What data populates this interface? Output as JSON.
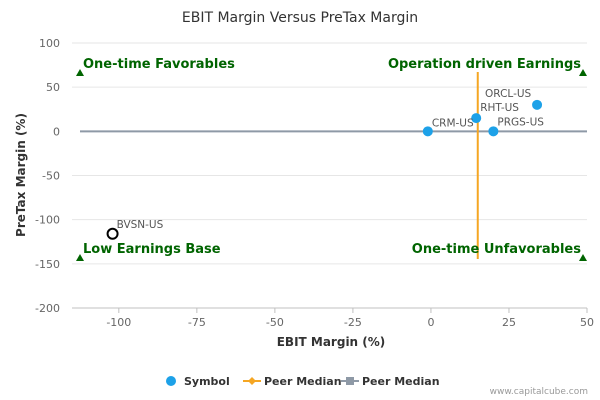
{
  "chart_data": {
    "type": "scatter",
    "title": "EBIT Margin Versus PreTax Margin",
    "xlabel": "EBIT Margin (%)",
    "ylabel": "PreTax Margin (%)",
    "xlim": [
      -115,
      50
    ],
    "ylim": [
      -200,
      100
    ],
    "x_ticks": [
      -100,
      -75,
      -50,
      -25,
      0,
      25,
      50
    ],
    "y_ticks": [
      100,
      50,
      0,
      -50,
      -100,
      -150,
      -200
    ],
    "points": [
      {
        "label": "ORCL-US",
        "x": 34,
        "y": 30,
        "style": "filled"
      },
      {
        "label": "RHT-US",
        "x": 14.5,
        "y": 15,
        "style": "filled"
      },
      {
        "label": "CRM-US",
        "x": -1,
        "y": 0,
        "style": "filled"
      },
      {
        "label": "PRGS-US",
        "x": 20,
        "y": 0,
        "style": "filled"
      },
      {
        "label": "BVSN-US",
        "x": -102,
        "y": -116,
        "style": "hollow"
      }
    ],
    "peer_median_x": 15,
    "peer_median_y": 0,
    "quadrant_labels": {
      "top_left": "One-time Favorables",
      "top_right": "Operation driven Earnings",
      "bottom_left": "Low Earnings Base",
      "bottom_right": "One-time Unfavorables"
    },
    "legend": [
      {
        "name": "Symbol",
        "marker": "circle",
        "color": "#1da1e8"
      },
      {
        "name": "Peer Median",
        "marker": "diamond",
        "color": "#f5a623"
      },
      {
        "name": "Peer Median",
        "marker": "square",
        "color": "#8e99a6"
      }
    ],
    "legend_position": "bottom",
    "colors": {
      "point": "#1da1e8",
      "vertical_median": "#f5a623",
      "horizontal_median": "#8e99a6",
      "quadrant_text": "#006400",
      "grid": "#e6e6e6"
    },
    "grid": true
  },
  "credit": "www.capitalcube.com"
}
